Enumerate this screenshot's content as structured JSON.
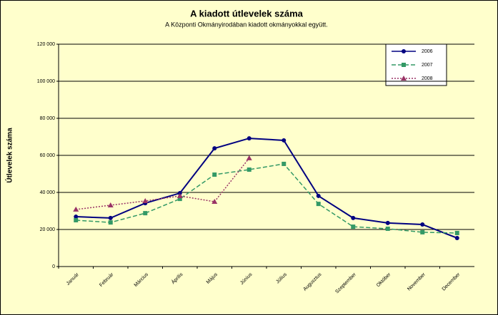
{
  "chart_data": {
    "type": "line",
    "title": "A  kiadott útlevelek száma",
    "subtitle": "A Központi Okmányirodában kiadott okmányokkal együtt.",
    "y_label": "Útlevelek száma",
    "categories": [
      "Január",
      "Február",
      "Március",
      "Április",
      "Május",
      "Június",
      "Július",
      "Augusztus",
      "Szeptember",
      "Október",
      "November",
      "December"
    ],
    "series": [
      {
        "name": "2006",
        "color": "#000080",
        "marker": "circle",
        "dash": "solid",
        "values": [
          26900,
          26200,
          34200,
          39600,
          63800,
          69200,
          68100,
          38100,
          26200,
          23500,
          22700,
          15400
        ]
      },
      {
        "name": "2007",
        "color": "#339966",
        "marker": "square",
        "dash": "dashed",
        "values": [
          25000,
          23800,
          28800,
          36500,
          49600,
          52300,
          55400,
          33800,
          21500,
          20400,
          18500,
          18100
        ]
      },
      {
        "name": "2008",
        "color": "#993366",
        "marker": "triangle",
        "dash": "dotted",
        "values": [
          30800,
          33100,
          35400,
          38100,
          35000,
          58500,
          null,
          null,
          null,
          null,
          null,
          null
        ]
      }
    ],
    "ylim": [
      0,
      120000
    ],
    "yticks": [
      {
        "value": 0,
        "label": "0"
      },
      {
        "value": 20000,
        "label": "20 000"
      },
      {
        "value": 40000,
        "label": "40 000"
      },
      {
        "value": 60000,
        "label": "60 000"
      },
      {
        "value": 80000,
        "label": "80 000"
      },
      {
        "value": 100000,
        "label": "100 000"
      },
      {
        "value": 120000,
        "label": "120 000"
      }
    ],
    "grid": true
  }
}
